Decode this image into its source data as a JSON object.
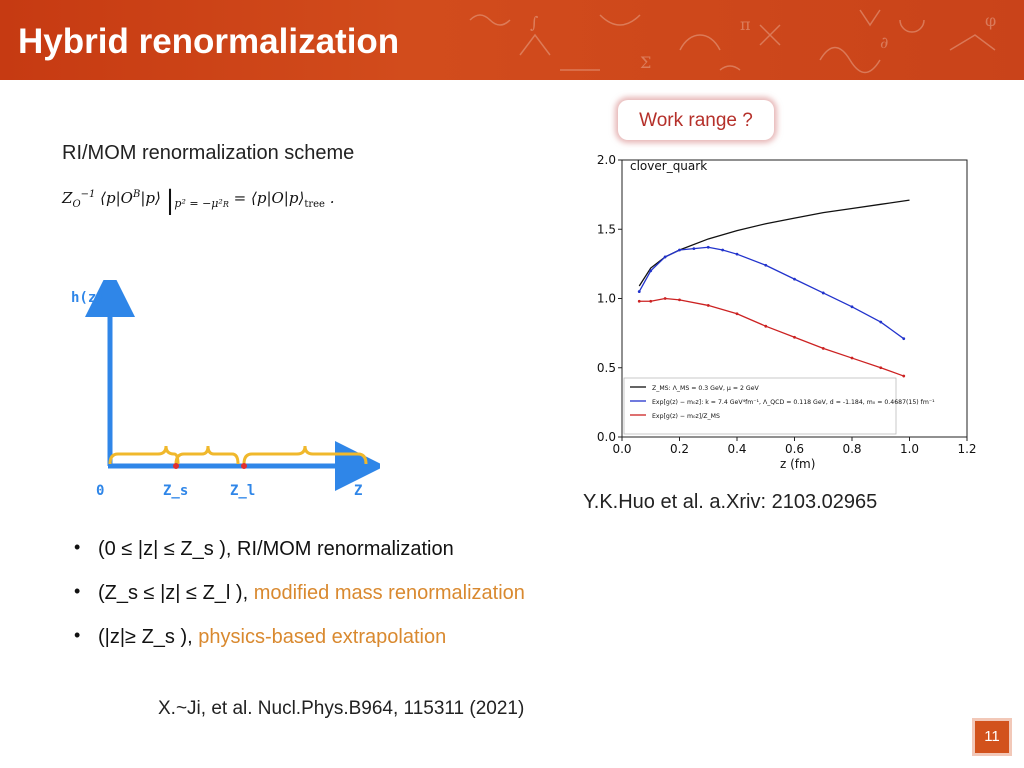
{
  "header": {
    "title": "Hybrid renormalization"
  },
  "work_range": {
    "label": "Work range ?"
  },
  "scheme": {
    "label": "RI/MOM renormalization scheme",
    "equation": {
      "lhs": "Z",
      "lhs_sub": "O",
      "lhs_sup": "−1",
      "bracket": "⟨p|O",
      "bracket_sup": "B",
      "bracket_end": "|p⟩",
      "condition": "p² = −μ²",
      "condition_sub": "R",
      "rhs": "= ⟨p|O|p⟩",
      "rhs_sub": "tree",
      "end": "."
    }
  },
  "diagram": {
    "y_label": "h(z)",
    "x_labels": [
      "0",
      "Z_s",
      "Z_l",
      "Z"
    ]
  },
  "chart_data": {
    "type": "line",
    "title": "clover_quark",
    "xlabel": "z (fm)",
    "ylabel": "",
    "xlim": [
      0.0,
      1.2
    ],
    "ylim": [
      0.0,
      2.0
    ],
    "xticks": [
      "0.0",
      "0.2",
      "0.4",
      "0.6",
      "0.8",
      "1.0",
      "1.2"
    ],
    "yticks": [
      "0.0",
      "0.5",
      "1.0",
      "1.5",
      "2.0"
    ],
    "grid": false,
    "legend_position": "bottom-right",
    "series": [
      {
        "name": "Z_MS: Λ_MS = 0.3 GeV, μ = 2 GeV",
        "color": "#111111",
        "x": [
          0.06,
          0.1,
          0.15,
          0.2,
          0.3,
          0.4,
          0.5,
          0.6,
          0.7,
          0.8,
          0.9,
          1.0
        ],
        "y": [
          1.09,
          1.22,
          1.3,
          1.35,
          1.43,
          1.49,
          1.54,
          1.58,
          1.62,
          1.65,
          1.68,
          1.71
        ]
      },
      {
        "name": "Exp[g(z) − m₀z]: k = 7.4 GeV⁴fm⁻¹, Λ_QCD = 0.118 GeV, d = -1.184, m₀ = 0.4687(15) fm⁻¹",
        "color": "#2233cc",
        "x": [
          0.06,
          0.1,
          0.15,
          0.2,
          0.25,
          0.3,
          0.35,
          0.4,
          0.5,
          0.6,
          0.7,
          0.8,
          0.9,
          0.98
        ],
        "y": [
          1.05,
          1.2,
          1.3,
          1.35,
          1.36,
          1.37,
          1.35,
          1.32,
          1.24,
          1.14,
          1.04,
          0.94,
          0.83,
          0.71
        ]
      },
      {
        "name": "Exp[g(z) − m₀z]/Z_MS",
        "color": "#cc2222",
        "x": [
          0.06,
          0.1,
          0.15,
          0.2,
          0.3,
          0.4,
          0.5,
          0.6,
          0.7,
          0.8,
          0.9,
          0.98
        ],
        "y": [
          0.98,
          0.98,
          1.0,
          0.99,
          0.95,
          0.89,
          0.8,
          0.72,
          0.64,
          0.57,
          0.5,
          0.44
        ]
      }
    ]
  },
  "citation1": "Y.K.Huo et al.  a.Xriv: 2103.02965",
  "bullets": [
    {
      "text": "(0 ≤ |z| ≤ Z_s ), RI/MOM renormalization",
      "highlight": ""
    },
    {
      "text": "(Z_s ≤ |z| ≤ Z_l ), ",
      "highlight": "modified mass renormalization"
    },
    {
      "text": "(|z|≥ Z_s  ), ",
      "highlight": "physics-based extrapolation"
    }
  ],
  "citation2": "X.~Ji, et al.  Nucl.Phys.B964, 115311 (2021)",
  "page_number": "11"
}
